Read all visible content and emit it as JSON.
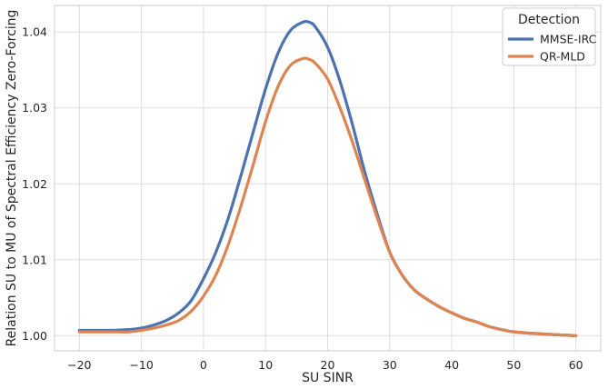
{
  "chart_data": {
    "type": "line",
    "title": "",
    "xlabel": "SU SINR",
    "ylabel": "Relation SU to MU of Spectral Efficiency Zero-Forcing",
    "xlim": [
      -24,
      64
    ],
    "ylim": [
      0.998,
      1.0435
    ],
    "x_ticks": [
      -20,
      -10,
      0,
      10,
      20,
      30,
      40,
      50,
      60
    ],
    "x_tick_labels": [
      "−20",
      "−10",
      "0",
      "10",
      "20",
      "30",
      "40",
      "50",
      "60"
    ],
    "y_ticks": [
      1.0,
      1.01,
      1.02,
      1.03,
      1.04
    ],
    "y_tick_labels": [
      "1.00",
      "1.01",
      "1.02",
      "1.03",
      "1.04"
    ],
    "grid": true,
    "legend": {
      "title": "Detection",
      "position": "top-right"
    },
    "series": [
      {
        "name": "MMSE-IRC",
        "color": "#4c72b0",
        "x": [
          -20,
          -15,
          -12,
          -10,
          -8,
          -6,
          -4,
          -2,
          0,
          2,
          4,
          6,
          8,
          10,
          12,
          14,
          16,
          17,
          18,
          20,
          22,
          24,
          26,
          28,
          30,
          32,
          34,
          36,
          38,
          40,
          42,
          44,
          46,
          48,
          50,
          55,
          60
        ],
        "y": [
          1.0007,
          1.0007,
          1.0008,
          1.001,
          1.0014,
          1.002,
          1.003,
          1.0046,
          1.0075,
          1.011,
          1.0155,
          1.021,
          1.0268,
          1.0325,
          1.0372,
          1.0402,
          1.0413,
          1.0413,
          1.0407,
          1.038,
          1.0335,
          1.0278,
          1.0215,
          1.016,
          1.011,
          1.008,
          1.006,
          1.0048,
          1.0038,
          1.003,
          1.0023,
          1.0018,
          1.0012,
          1.0008,
          1.0005,
          1.0002,
          1.0
        ]
      },
      {
        "name": "QR-MLD",
        "color": "#dd8452",
        "x": [
          -20,
          -15,
          -12,
          -10,
          -8,
          -6,
          -4,
          -2,
          0,
          2,
          4,
          6,
          8,
          10,
          12,
          14,
          16,
          17,
          18,
          20,
          22,
          24,
          26,
          28,
          30,
          32,
          34,
          36,
          38,
          40,
          42,
          44,
          46,
          48,
          50,
          55,
          60
        ],
        "y": [
          1.0005,
          1.0005,
          1.0005,
          1.0007,
          1.001,
          1.0014,
          1.002,
          1.0032,
          1.0052,
          1.008,
          1.012,
          1.017,
          1.0225,
          1.0282,
          1.0328,
          1.0356,
          1.0365,
          1.0364,
          1.0359,
          1.0338,
          1.03,
          1.0255,
          1.0205,
          1.0155,
          1.011,
          1.008,
          1.006,
          1.0048,
          1.0038,
          1.003,
          1.0023,
          1.0018,
          1.0012,
          1.0008,
          1.0005,
          1.0002,
          1.0
        ]
      }
    ]
  }
}
